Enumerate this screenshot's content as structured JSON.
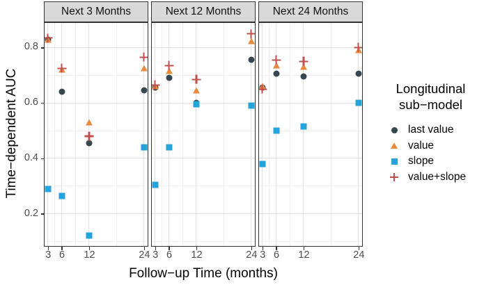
{
  "figure": {
    "y_axis_title": "Time−dependent AUC",
    "x_axis_title": "Follow−up Time (months)"
  },
  "axes": {
    "y_tick_labels": [
      "0.8",
      "0.6",
      "0.4",
      "0.2"
    ],
    "x_tick_labels": [
      "3",
      "6",
      "12",
      "24"
    ]
  },
  "legend": {
    "title_line1": "Longitudinal",
    "title_line2": "sub−model",
    "items": [
      {
        "label": "last value",
        "marker": "circle-icon",
        "color": "#37474f"
      },
      {
        "label": "value",
        "marker": "triangle-icon",
        "color": "#e88b3d"
      },
      {
        "label": "slope",
        "marker": "square-icon",
        "color": "#25a3dc"
      },
      {
        "label": "value+slope",
        "marker": "plus-icon",
        "color": "#c14f4d"
      }
    ]
  },
  "chart_data": {
    "type": "scatter",
    "title": "",
    "xlabel": "Follow−up Time (months)",
    "ylabel": "Time−dependent AUC",
    "x": [
      3,
      6,
      12,
      24
    ],
    "x_ticks": [
      3,
      6,
      12,
      24
    ],
    "y_ticks": [
      0.2,
      0.4,
      0.6,
      0.8
    ],
    "x_minor": [
      4.5,
      9,
      18
    ],
    "y_minor": [
      0.1,
      0.3,
      0.5,
      0.7
    ],
    "xlim": [
      2.27,
      24.63
    ],
    "ylim": [
      0.086,
      0.889
    ],
    "grid": true,
    "legend_position": "right",
    "facets": [
      {
        "label": "Next 3 Months",
        "series": [
          {
            "name": "last value",
            "values": [
              0.83,
              0.64,
              0.455,
              0.645
            ]
          },
          {
            "name": "value",
            "values": [
              0.83,
              0.72,
              0.53,
              0.725
            ]
          },
          {
            "name": "slope",
            "values": [
              0.29,
              0.265,
              0.12,
              0.44
            ]
          },
          {
            "name": "value+slope",
            "values": [
              0.835,
              0.725,
              0.48,
              0.765
            ]
          }
        ]
      },
      {
        "label": "Next 12 Months",
        "series": [
          {
            "name": "last value",
            "values": [
              0.655,
              0.69,
              0.6,
              0.755
            ]
          },
          {
            "name": "value",
            "values": [
              0.66,
              0.715,
              0.645,
              0.825
            ]
          },
          {
            "name": "slope",
            "values": [
              0.305,
              0.44,
              0.595,
              0.59
            ]
          },
          {
            "name": "value+slope",
            "values": [
              0.665,
              0.735,
              0.685,
              0.85
            ]
          }
        ]
      },
      {
        "label": "Next 24 Months",
        "series": [
          {
            "name": "last value",
            "values": [
              0.655,
              0.705,
              0.695,
              0.705
            ]
          },
          {
            "name": "value",
            "values": [
              0.66,
              0.735,
              0.73,
              0.79
            ]
          },
          {
            "name": "slope",
            "values": [
              0.38,
              0.5,
              0.515,
              0.6
            ]
          },
          {
            "name": "value+slope",
            "values": [
              0.65,
              0.755,
              0.75,
              0.8
            ]
          }
        ]
      }
    ]
  },
  "colors": {
    "last_value": "#37474f",
    "value": "#e88b3d",
    "slope": "#25a3dc",
    "value_slope": "#c14f4d",
    "strip_bg": "#d9d9d9",
    "panel_border": "#333333",
    "grid_major": "#e3e3e3",
    "grid_minor": "#f1f1f1",
    "tick_label": "#4d4d4d"
  }
}
